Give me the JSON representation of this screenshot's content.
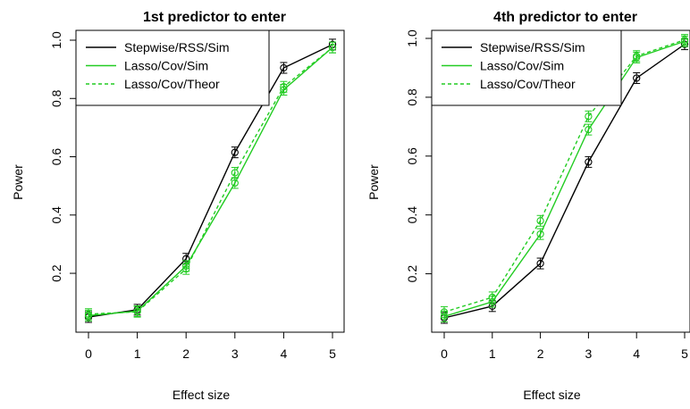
{
  "chart_data": [
    {
      "type": "line",
      "title": "1st predictor to enter",
      "xlabel": "Effect size",
      "ylabel": "Power",
      "x": [
        0,
        1,
        2,
        3,
        4,
        5
      ],
      "xlim": [
        0,
        5
      ],
      "ylim": [
        0.05,
        1.0
      ],
      "xticks": [
        "0",
        "1",
        "2",
        "3",
        "4",
        "5"
      ],
      "yticks": [
        "0.2",
        "0.4",
        "0.6",
        "0.8",
        "1.0"
      ],
      "grid": false,
      "legend_position": "top-left",
      "error_bars": true,
      "series": [
        {
          "name": "Stepwise/RSS/Sim",
          "color": "#000000",
          "dash": "solid",
          "values": [
            0.05,
            0.075,
            0.25,
            0.615,
            0.905,
            0.985
          ]
        },
        {
          "name": "Lasso/Cov/Sim",
          "color": "#22cc22",
          "dash": "solid",
          "values": [
            0.055,
            0.07,
            0.225,
            0.51,
            0.83,
            0.975
          ]
        },
        {
          "name": "Lasso/Cov/Theor",
          "color": "#22cc22",
          "dash": "dashed",
          "values": [
            0.06,
            0.068,
            0.215,
            0.545,
            0.84,
            0.975
          ]
        }
      ]
    },
    {
      "type": "line",
      "title": "4th predictor to enter",
      "xlabel": "Effect size",
      "ylabel": "Power",
      "x": [
        0,
        1,
        2,
        3,
        4,
        5
      ],
      "xlim": [
        0,
        5
      ],
      "ylim": [
        0.05,
        1.0
      ],
      "xticks": [
        "0",
        "1",
        "2",
        "3",
        "4",
        "5"
      ],
      "yticks": [
        "0.2",
        "0.4",
        "0.6",
        "0.8",
        "1.0"
      ],
      "grid": false,
      "legend_position": "top-left",
      "error_bars": true,
      "series": [
        {
          "name": "Stepwise/RSS/Sim",
          "color": "#000000",
          "dash": "solid",
          "values": [
            0.05,
            0.09,
            0.235,
            0.58,
            0.865,
            0.98
          ]
        },
        {
          "name": "Lasso/Cov/Sim",
          "color": "#22cc22",
          "dash": "solid",
          "values": [
            0.055,
            0.105,
            0.335,
            0.69,
            0.935,
            0.99
          ]
        },
        {
          "name": "Lasso/Cov/Theor",
          "color": "#22cc22",
          "dash": "dashed",
          "values": [
            0.07,
            0.12,
            0.38,
            0.735,
            0.94,
            0.995
          ]
        }
      ]
    }
  ]
}
